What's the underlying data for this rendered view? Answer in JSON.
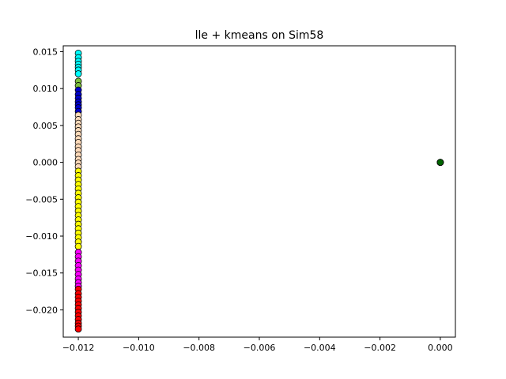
{
  "chart_data": {
    "type": "scatter",
    "title": "lle + kmeans on Sim58",
    "xlabel": "",
    "ylabel": "",
    "xlim": [
      -0.0125,
      0.0005
    ],
    "ylim": [
      -0.0237,
      0.0158
    ],
    "x_ticks": [
      {
        "value": -0.012,
        "label": "−0.012"
      },
      {
        "value": -0.01,
        "label": "−0.010"
      },
      {
        "value": -0.008,
        "label": "−0.008"
      },
      {
        "value": -0.006,
        "label": "−0.006"
      },
      {
        "value": -0.004,
        "label": "−0.004"
      },
      {
        "value": -0.002,
        "label": "−0.002"
      },
      {
        "value": 0.0,
        "label": "0.000"
      }
    ],
    "y_ticks": [
      {
        "value": 0.015,
        "label": "0.015"
      },
      {
        "value": 0.01,
        "label": "0.010"
      },
      {
        "value": 0.005,
        "label": "0.005"
      },
      {
        "value": 0.0,
        "label": "0.000"
      },
      {
        "value": -0.005,
        "label": "−0.005"
      },
      {
        "value": -0.01,
        "label": "−0.010"
      },
      {
        "value": -0.015,
        "label": "−0.015"
      },
      {
        "value": -0.02,
        "label": "−0.020"
      }
    ],
    "grid": false,
    "legend": "none",
    "edge_color": "#000000",
    "series": [
      {
        "color": "#00ffff",
        "x": [
          -0.012,
          -0.012,
          -0.012,
          -0.012,
          -0.012,
          -0.012,
          -0.012
        ],
        "y": [
          0.0148,
          0.0142,
          0.0137,
          0.0133,
          0.0129,
          0.0125,
          0.012
        ]
      },
      {
        "color": "#7fbf3f",
        "x": [
          -0.012,
          -0.012
        ],
        "y": [
          0.011,
          0.0104
        ]
      },
      {
        "color": "#0000cd",
        "x": [
          -0.012,
          -0.012,
          -0.012,
          -0.012,
          -0.012,
          -0.012,
          -0.012
        ],
        "y": [
          0.0098,
          0.0092,
          0.0087,
          0.0082,
          0.0078,
          0.0074,
          0.0069
        ]
      },
      {
        "color": "#ffdab9",
        "x": [
          -0.012,
          -0.012,
          -0.012,
          -0.012,
          -0.012,
          -0.012,
          -0.012,
          -0.012,
          -0.012,
          -0.012,
          -0.012,
          -0.012,
          -0.012,
          -0.012
        ],
        "y": [
          0.0064,
          0.0058,
          0.0053,
          0.0048,
          0.0043,
          0.0038,
          0.0032,
          0.0027,
          0.0021,
          0.0016,
          0.001,
          0.0004,
          -0.0001,
          -0.0006
        ]
      },
      {
        "color": "#ffff00",
        "x": [
          -0.012,
          -0.012,
          -0.012,
          -0.012,
          -0.012,
          -0.012,
          -0.012,
          -0.012,
          -0.012,
          -0.012,
          -0.012,
          -0.012,
          -0.012,
          -0.012,
          -0.012,
          -0.012,
          -0.012,
          -0.012
        ],
        "y": [
          -0.0012,
          -0.0018,
          -0.0024,
          -0.003,
          -0.0036,
          -0.0042,
          -0.0048,
          -0.0054,
          -0.006,
          -0.0066,
          -0.0072,
          -0.0078,
          -0.0084,
          -0.009,
          -0.0096,
          -0.0102,
          -0.0108,
          -0.0114
        ]
      },
      {
        "color": "#ff00ff",
        "x": [
          -0.012,
          -0.012,
          -0.012,
          -0.012,
          -0.012,
          -0.012,
          -0.012,
          -0.012,
          -0.012
        ],
        "y": [
          -0.0122,
          -0.0128,
          -0.0134,
          -0.014,
          -0.0146,
          -0.0152,
          -0.0158,
          -0.0163,
          -0.0168
        ]
      },
      {
        "color": "#ff0000",
        "x": [
          -0.012,
          -0.012,
          -0.012,
          -0.012,
          -0.012,
          -0.012,
          -0.012,
          -0.012,
          -0.012,
          -0.012,
          -0.012,
          -0.012
        ],
        "y": [
          -0.0172,
          -0.0178,
          -0.0183,
          -0.0188,
          -0.0193,
          -0.0198,
          -0.0203,
          -0.0208,
          -0.0213,
          -0.0218,
          -0.0222,
          -0.0226
        ]
      },
      {
        "color": "#006400",
        "x": [
          0.0,
          0.0,
          0.0
        ],
        "y": [
          0.0,
          0.0,
          0.0
        ]
      }
    ]
  }
}
